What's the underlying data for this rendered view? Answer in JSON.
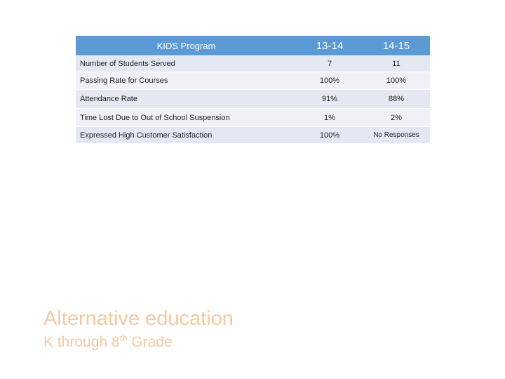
{
  "table": {
    "header": [
      "KIDS Program",
      "13-14",
      "14-15"
    ],
    "rows": [
      [
        "Number of Students Served",
        "7",
        "11"
      ],
      [
        "Passing Rate for Courses",
        "100%",
        "100%"
      ],
      [
        "Attendance Rate",
        "91%",
        "88%"
      ],
      [
        "Time Lost Due to Out of School Suspension",
        "1%",
        "2%"
      ],
      [
        "Expressed High Customer Satisfaction",
        "100%",
        "No Responses"
      ]
    ]
  },
  "title": "Alternative education",
  "subtitle": {
    "before": "K through 8",
    "sup": "th",
    "after": " Grade"
  }
}
